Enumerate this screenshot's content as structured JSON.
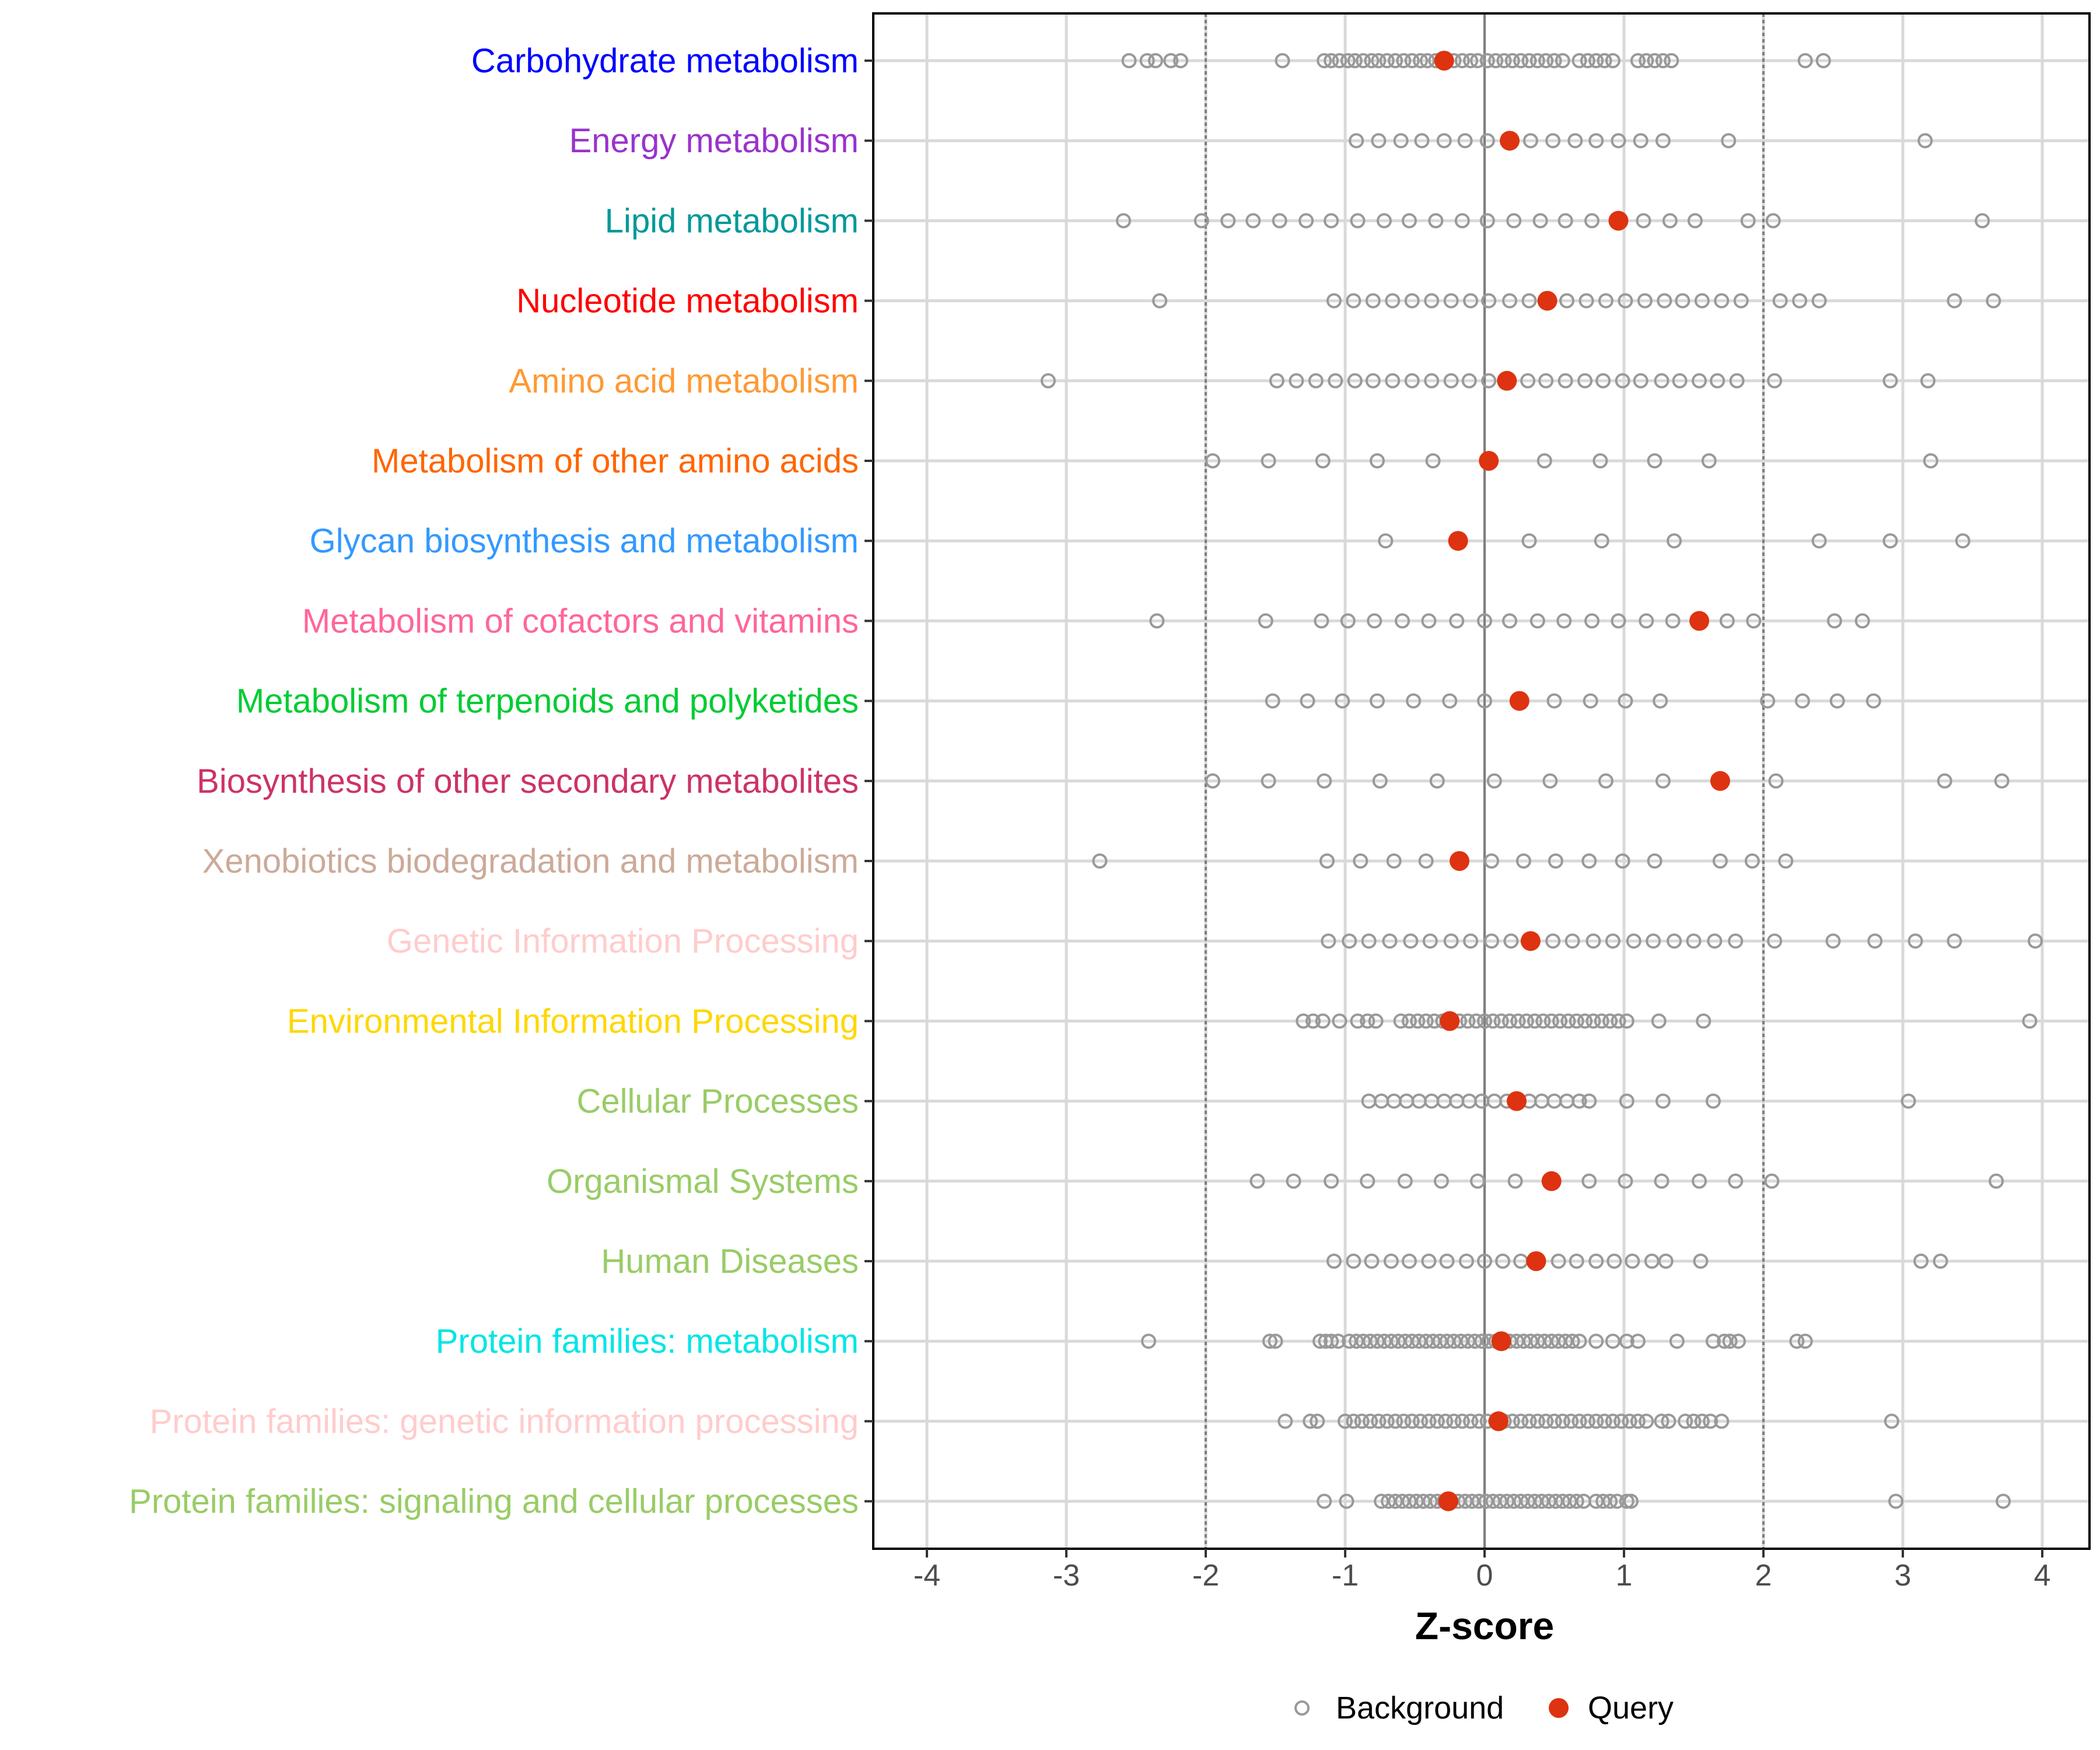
{
  "chart_data": {
    "type": "scatter",
    "xlabel": "Z-score",
    "ylabel": "",
    "xlim": [
      -4.4,
      4.4
    ],
    "xticks": [
      "-4",
      "-3",
      "-2",
      "-1",
      "0",
      "1",
      "2",
      "3",
      "4"
    ],
    "xtick_values": [
      -4,
      -3,
      -2,
      -1,
      0,
      1,
      2,
      3,
      4
    ],
    "reference_lines": {
      "dotted": [
        -2,
        2
      ],
      "solid": [
        0
      ]
    },
    "grid": true,
    "legend": {
      "placement": "bottom",
      "entries": [
        "Background",
        "Query"
      ]
    },
    "colors": {
      "background": "#999999",
      "query": "#DD3311"
    },
    "categories": [
      {
        "label": "Carbohydrate metabolism",
        "color": "#0000FF",
        "query": -0.29,
        "background": [
          -2.55,
          -2.42,
          -2.36,
          -2.25,
          -2.18,
          -1.45,
          -1.15,
          -1.1,
          -1.04,
          -0.98,
          -0.93,
          -0.87,
          -0.81,
          -0.76,
          -0.7,
          -0.64,
          -0.58,
          -0.52,
          -0.46,
          -0.41,
          -0.35,
          -0.22,
          -0.16,
          -0.1,
          -0.05,
          0.02,
          0.08,
          0.14,
          0.2,
          0.26,
          0.32,
          0.38,
          0.44,
          0.5,
          0.56,
          0.68,
          0.74,
          0.8,
          0.86,
          0.92,
          1.1,
          1.16,
          1.22,
          1.28,
          1.34,
          2.3,
          2.43
        ]
      },
      {
        "label": "Energy metabolism",
        "color": "#9933CC",
        "query": 0.18,
        "background": [
          -0.92,
          -0.76,
          -0.6,
          -0.45,
          -0.29,
          -0.14,
          0.02,
          0.33,
          0.49,
          0.65,
          0.8,
          0.96,
          1.12,
          1.28,
          1.75,
          3.16
        ]
      },
      {
        "label": "Lipid metabolism",
        "color": "#009999",
        "query": 0.96,
        "background": [
          -2.59,
          -2.03,
          -1.84,
          -1.66,
          -1.47,
          -1.28,
          -1.1,
          -0.91,
          -0.72,
          -0.54,
          -0.35,
          -0.16,
          0.02,
          0.21,
          0.4,
          0.58,
          0.77,
          1.14,
          1.33,
          1.51,
          1.89,
          2.07,
          3.57
        ]
      },
      {
        "label": "Nucleotide metabolism",
        "color": "#FF0000",
        "query": 0.45,
        "background": [
          -2.33,
          -1.08,
          -0.94,
          -0.8,
          -0.66,
          -0.52,
          -0.38,
          -0.24,
          -0.1,
          0.03,
          0.18,
          0.32,
          0.59,
          0.73,
          0.87,
          1.01,
          1.15,
          1.29,
          1.42,
          1.56,
          1.7,
          1.84,
          2.12,
          2.26,
          2.4,
          3.37,
          3.65
        ]
      },
      {
        "label": "Amino acid metabolism",
        "color": "#FF9933",
        "query": 0.16,
        "background": [
          -3.13,
          -1.49,
          -1.35,
          -1.21,
          -1.07,
          -0.93,
          -0.8,
          -0.66,
          -0.52,
          -0.38,
          -0.24,
          -0.11,
          0.03,
          0.31,
          0.44,
          0.58,
          0.72,
          0.85,
          0.99,
          1.12,
          1.27,
          1.4,
          1.54,
          1.67,
          1.81,
          2.08,
          2.91,
          3.18
        ]
      },
      {
        "label": "Metabolism of other amino acids",
        "color": "#FF6600",
        "query": 0.03,
        "background": [
          -1.95,
          -1.55,
          -1.16,
          -0.77,
          -0.37,
          0.43,
          0.83,
          1.22,
          1.61,
          3.2
        ]
      },
      {
        "label": "Glycan biosynthesis and metabolism",
        "color": "#3399FF",
        "query": -0.19,
        "background": [
          -0.71,
          0.32,
          0.84,
          1.36,
          2.4,
          2.91,
          3.43
        ]
      },
      {
        "label": "Metabolism of cofactors and vitamins",
        "color": "#FF6699",
        "query": 1.54,
        "background": [
          -2.35,
          -1.57,
          -1.17,
          -0.98,
          -0.79,
          -0.59,
          -0.4,
          -0.2,
          0,
          0.18,
          0.38,
          0.57,
          0.77,
          0.96,
          1.16,
          1.35,
          1.74,
          1.93,
          2.51,
          2.71
        ]
      },
      {
        "label": "Metabolism of terpenoids and polyketides",
        "color": "#00CC33",
        "query": 0.25,
        "background": [
          -1.52,
          -1.27,
          -1.02,
          -0.77,
          -0.51,
          -0.25,
          0,
          0.5,
          0.76,
          1.01,
          1.26,
          2.03,
          2.28,
          2.53,
          2.79
        ]
      },
      {
        "label": "Biosynthesis of other secondary metabolites",
        "color": "#CC3366",
        "query": 1.69,
        "background": [
          -1.95,
          -1.55,
          -1.15,
          -0.75,
          -0.34,
          0.07,
          0.47,
          0.87,
          1.28,
          2.09,
          3.3,
          3.71
        ]
      },
      {
        "label": "Xenobiotics biodegradation and metabolism",
        "color": "#CCAA99",
        "query": -0.18,
        "background": [
          -2.76,
          -1.13,
          -0.89,
          -0.65,
          -0.42,
          0.05,
          0.28,
          0.51,
          0.75,
          0.99,
          1.22,
          1.69,
          1.92,
          2.16
        ]
      },
      {
        "label": "Genetic Information Processing",
        "color": "#FFCCCC",
        "query": 0.33,
        "background": [
          -1.12,
          -0.97,
          -0.83,
          -0.68,
          -0.53,
          -0.39,
          -0.24,
          -0.1,
          0.05,
          0.19,
          0.49,
          0.63,
          0.78,
          0.92,
          1.07,
          1.21,
          1.36,
          1.5,
          1.65,
          1.8,
          2.08,
          2.5,
          2.8,
          3.09,
          3.37,
          3.95
        ]
      },
      {
        "label": "Environmental Information Processing",
        "color": "#FFD700",
        "query": -0.25,
        "background": [
          -1.3,
          -1.23,
          -1.16,
          -1.04,
          -0.91,
          -0.84,
          -0.78,
          -0.6,
          -0.54,
          -0.48,
          -0.42,
          -0.36,
          -0.3,
          -0.18,
          -0.12,
          -0.06,
          0.0,
          0.06,
          0.12,
          0.18,
          0.24,
          0.3,
          0.36,
          0.42,
          0.48,
          0.54,
          0.6,
          0.66,
          0.72,
          0.78,
          0.84,
          0.9,
          0.96,
          1.02,
          1.25,
          1.57,
          3.91
        ]
      },
      {
        "label": "Cellular Processes",
        "color": "#99CC66",
        "query": 0.23,
        "background": [
          -0.83,
          -0.74,
          -0.65,
          -0.56,
          -0.47,
          -0.38,
          -0.29,
          -0.2,
          -0.11,
          -0.02,
          0.07,
          0.16,
          0.32,
          0.41,
          0.5,
          0.59,
          0.68,
          0.75,
          1.02,
          1.28,
          1.64,
          3.04
        ]
      },
      {
        "label": "Organismal Systems",
        "color": "#99CC66",
        "query": 0.48,
        "background": [
          -1.63,
          -1.37,
          -1.1,
          -0.84,
          -0.57,
          -0.31,
          -0.05,
          0.22,
          0.75,
          1.01,
          1.27,
          1.54,
          1.8,
          2.06,
          3.67
        ]
      },
      {
        "label": "Human Diseases",
        "color": "#99CC66",
        "query": 0.37,
        "background": [
          -1.08,
          -0.94,
          -0.81,
          -0.67,
          -0.54,
          -0.4,
          -0.27,
          -0.13,
          0,
          0.13,
          0.26,
          0.53,
          0.66,
          0.8,
          0.93,
          1.06,
          1.2,
          1.3,
          1.55,
          3.13,
          3.27
        ]
      },
      {
        "label": "Protein families: metabolism",
        "color": "#00E5E5",
        "query": 0.12,
        "background": [
          -2.41,
          -1.54,
          -1.5,
          -1.18,
          -1.14,
          -1.1,
          -1.05,
          -0.97,
          -0.92,
          -0.87,
          -0.82,
          -0.77,
          -0.72,
          -0.67,
          -0.62,
          -0.57,
          -0.52,
          -0.47,
          -0.42,
          -0.37,
          -0.32,
          -0.27,
          -0.22,
          -0.17,
          -0.12,
          -0.07,
          -0.02,
          0.03,
          0.08,
          0.13,
          0.18,
          0.23,
          0.28,
          0.33,
          0.38,
          0.43,
          0.48,
          0.53,
          0.58,
          0.63,
          0.68,
          0.8,
          0.92,
          1.02,
          1.1,
          1.38,
          1.64,
          1.72,
          1.76,
          1.82,
          2.24,
          2.3
        ]
      },
      {
        "label": "Protein families: genetic information processing",
        "color": "#FFCCCC",
        "query": 0.1,
        "background": [
          -1.43,
          -1.25,
          -1.2,
          -1.0,
          -0.94,
          -0.88,
          -0.82,
          -0.76,
          -0.7,
          -0.64,
          -0.58,
          -0.52,
          -0.46,
          -0.4,
          -0.34,
          -0.28,
          -0.22,
          -0.16,
          -0.1,
          -0.04,
          0.02,
          0.08,
          0.14,
          0.2,
          0.26,
          0.32,
          0.38,
          0.44,
          0.5,
          0.56,
          0.62,
          0.68,
          0.74,
          0.8,
          0.86,
          0.92,
          0.98,
          1.04,
          1.1,
          1.16,
          1.27,
          1.32,
          1.44,
          1.5,
          1.56,
          1.62,
          1.7,
          2.92
        ]
      },
      {
        "label": "Protein families: signaling and cellular processes",
        "color": "#99CC66",
        "query": -0.26,
        "background": [
          -1.15,
          -0.99,
          -0.74,
          -0.69,
          -0.64,
          -0.59,
          -0.54,
          -0.49,
          -0.44,
          -0.39,
          -0.34,
          -0.29,
          -0.24,
          -0.19,
          -0.14,
          -0.09,
          -0.04,
          0.01,
          0.06,
          0.11,
          0.16,
          0.21,
          0.26,
          0.31,
          0.36,
          0.41,
          0.46,
          0.51,
          0.56,
          0.61,
          0.66,
          0.71,
          0.8,
          0.85,
          0.9,
          0.95,
          1.02,
          1.05,
          2.95,
          3.72
        ]
      }
    ]
  }
}
